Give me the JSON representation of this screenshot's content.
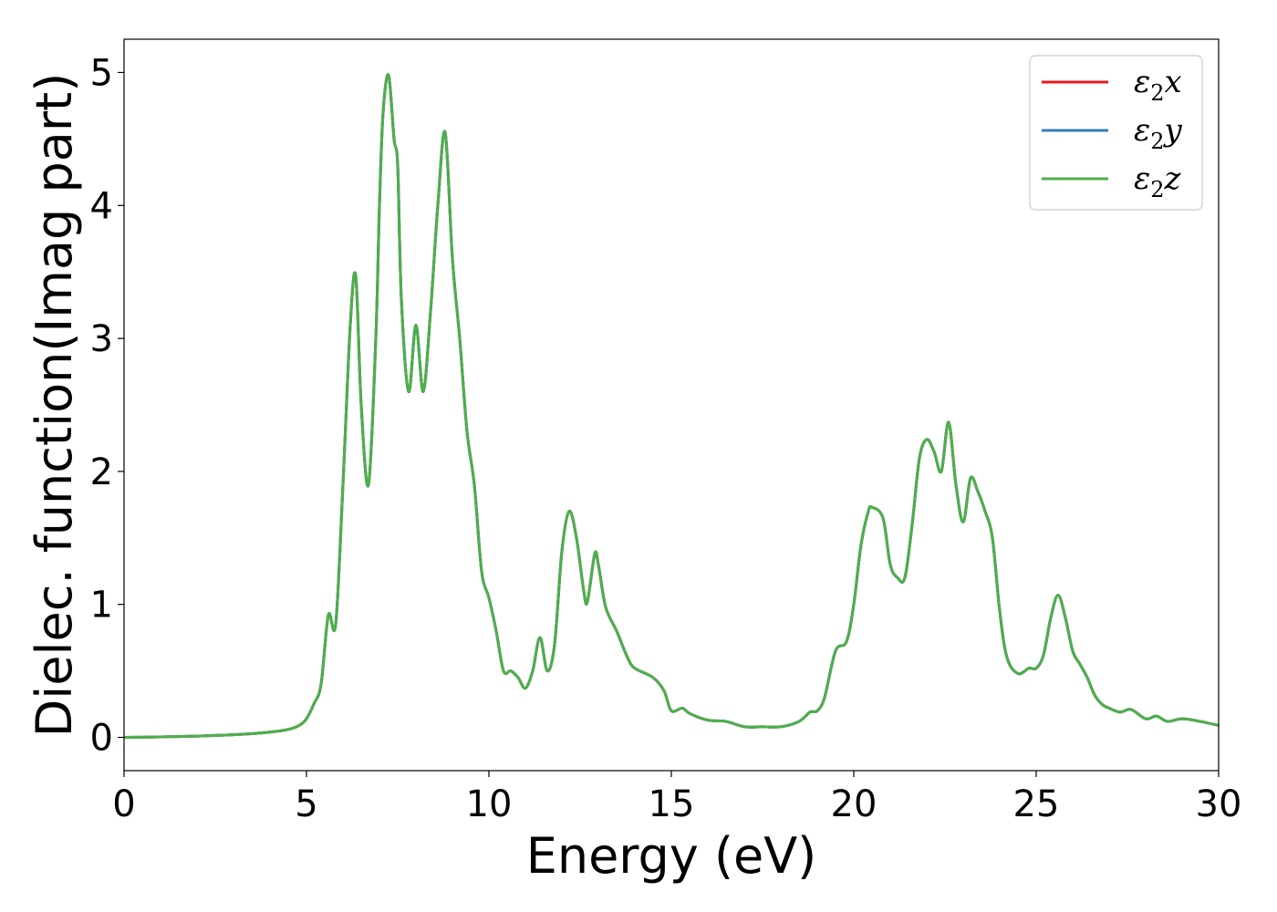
{
  "chart_data": {
    "type": "line",
    "title": "",
    "xlabel": "Energy (eV)",
    "ylabel": "Dielec. function(Imag part)",
    "xlim": [
      0,
      30
    ],
    "ylim": [
      -0.25,
      5.25
    ],
    "xticks": [
      0,
      5,
      10,
      15,
      20,
      25,
      30
    ],
    "yticks": [
      0,
      1,
      2,
      3,
      4,
      5
    ],
    "grid": false,
    "legend_position": "top-right",
    "x": [
      0,
      1,
      2,
      3,
      4,
      4.5,
      4.8,
      5.0,
      5.2,
      5.4,
      5.6,
      5.8,
      6.0,
      6.2,
      6.35,
      6.5,
      6.7,
      6.9,
      7.0,
      7.1,
      7.25,
      7.4,
      7.5,
      7.6,
      7.8,
      8.0,
      8.2,
      8.4,
      8.6,
      8.8,
      9.0,
      9.2,
      9.4,
      9.6,
      9.8,
      10.0,
      10.2,
      10.4,
      10.6,
      10.8,
      11.0,
      11.2,
      11.4,
      11.6,
      11.8,
      12.0,
      12.2,
      12.4,
      12.6,
      12.7,
      12.9,
      13.0,
      13.2,
      13.5,
      13.8,
      14.0,
      14.5,
      14.8,
      15.0,
      15.3,
      15.5,
      16.0,
      16.5,
      17.0,
      17.5,
      18.0,
      18.5,
      18.8,
      19.0,
      19.2,
      19.5,
      19.8,
      20.0,
      20.2,
      20.4,
      20.5,
      20.8,
      21.0,
      21.2,
      21.4,
      21.6,
      21.8,
      22.0,
      22.2,
      22.4,
      22.6,
      22.8,
      23.0,
      23.2,
      23.4,
      23.6,
      23.8,
      24.0,
      24.2,
      24.5,
      24.8,
      25.0,
      25.2,
      25.4,
      25.6,
      25.8,
      26.0,
      26.2,
      26.4,
      26.6,
      26.8,
      27.0,
      27.3,
      27.6,
      28.0,
      28.3,
      28.6,
      29.0,
      29.5,
      30.0
    ],
    "series": [
      {
        "name": "ε2x",
        "color": "#e41a1c",
        "values": [
          0.0,
          0.004,
          0.01,
          0.02,
          0.04,
          0.06,
          0.09,
          0.14,
          0.25,
          0.4,
          0.92,
          0.85,
          1.9,
          3.1,
          3.47,
          2.5,
          1.9,
          3.0,
          4.0,
          4.7,
          4.98,
          4.5,
          4.3,
          3.3,
          2.6,
          3.1,
          2.6,
          3.2,
          4.0,
          4.55,
          3.6,
          3.0,
          2.3,
          1.9,
          1.25,
          1.05,
          0.8,
          0.5,
          0.5,
          0.45,
          0.37,
          0.5,
          0.75,
          0.5,
          0.7,
          1.4,
          1.7,
          1.5,
          1.1,
          1.02,
          1.38,
          1.3,
          0.98,
          0.8,
          0.6,
          0.52,
          0.45,
          0.35,
          0.2,
          0.22,
          0.18,
          0.13,
          0.12,
          0.08,
          0.08,
          0.08,
          0.12,
          0.19,
          0.2,
          0.3,
          0.65,
          0.72,
          1.0,
          1.45,
          1.7,
          1.73,
          1.65,
          1.3,
          1.2,
          1.2,
          1.6,
          2.1,
          2.24,
          2.15,
          2.0,
          2.37,
          1.9,
          1.62,
          1.95,
          1.85,
          1.7,
          1.5,
          0.95,
          0.6,
          0.48,
          0.52,
          0.52,
          0.62,
          0.9,
          1.07,
          0.9,
          0.65,
          0.55,
          0.45,
          0.32,
          0.25,
          0.22,
          0.19,
          0.21,
          0.14,
          0.16,
          0.12,
          0.14,
          0.12,
          0.09
        ]
      },
      {
        "name": "ε2y",
        "color": "#377eb8",
        "values": [
          0.0,
          0.004,
          0.01,
          0.02,
          0.04,
          0.06,
          0.09,
          0.14,
          0.25,
          0.4,
          0.92,
          0.85,
          1.9,
          3.1,
          3.47,
          2.5,
          1.9,
          3.0,
          4.0,
          4.7,
          4.98,
          4.5,
          4.3,
          3.3,
          2.6,
          3.1,
          2.6,
          3.2,
          4.0,
          4.55,
          3.6,
          3.0,
          2.3,
          1.9,
          1.25,
          1.05,
          0.8,
          0.5,
          0.5,
          0.45,
          0.37,
          0.5,
          0.75,
          0.5,
          0.7,
          1.4,
          1.7,
          1.5,
          1.1,
          1.02,
          1.38,
          1.3,
          0.98,
          0.8,
          0.6,
          0.52,
          0.45,
          0.35,
          0.2,
          0.22,
          0.18,
          0.13,
          0.12,
          0.08,
          0.08,
          0.08,
          0.12,
          0.19,
          0.2,
          0.3,
          0.65,
          0.72,
          1.0,
          1.45,
          1.7,
          1.73,
          1.65,
          1.3,
          1.2,
          1.2,
          1.6,
          2.1,
          2.24,
          2.15,
          2.0,
          2.37,
          1.9,
          1.62,
          1.95,
          1.85,
          1.7,
          1.5,
          0.95,
          0.6,
          0.48,
          0.52,
          0.52,
          0.62,
          0.9,
          1.07,
          0.9,
          0.65,
          0.55,
          0.45,
          0.32,
          0.25,
          0.22,
          0.19,
          0.21,
          0.14,
          0.16,
          0.12,
          0.14,
          0.12,
          0.09
        ]
      },
      {
        "name": "ε2z",
        "color": "#4daf4a",
        "values": [
          0.0,
          0.004,
          0.01,
          0.02,
          0.04,
          0.06,
          0.09,
          0.14,
          0.25,
          0.4,
          0.92,
          0.85,
          1.9,
          3.1,
          3.47,
          2.5,
          1.9,
          3.0,
          4.0,
          4.7,
          4.98,
          4.5,
          4.3,
          3.3,
          2.6,
          3.1,
          2.6,
          3.2,
          4.0,
          4.55,
          3.6,
          3.0,
          2.3,
          1.9,
          1.25,
          1.05,
          0.8,
          0.5,
          0.5,
          0.45,
          0.37,
          0.5,
          0.75,
          0.5,
          0.7,
          1.4,
          1.7,
          1.5,
          1.1,
          1.02,
          1.38,
          1.3,
          0.98,
          0.8,
          0.6,
          0.52,
          0.45,
          0.35,
          0.2,
          0.22,
          0.18,
          0.13,
          0.12,
          0.08,
          0.08,
          0.08,
          0.12,
          0.19,
          0.2,
          0.3,
          0.65,
          0.72,
          1.0,
          1.45,
          1.7,
          1.73,
          1.65,
          1.3,
          1.2,
          1.2,
          1.6,
          2.1,
          2.24,
          2.15,
          2.0,
          2.37,
          1.9,
          1.62,
          1.95,
          1.85,
          1.7,
          1.5,
          0.95,
          0.6,
          0.48,
          0.52,
          0.52,
          0.62,
          0.9,
          1.07,
          0.9,
          0.65,
          0.55,
          0.45,
          0.32,
          0.25,
          0.22,
          0.19,
          0.21,
          0.14,
          0.16,
          0.12,
          0.14,
          0.12,
          0.09
        ]
      }
    ],
    "legend": [
      {
        "base": "ε",
        "sub": "2",
        "var": "x"
      },
      {
        "base": "ε",
        "sub": "2",
        "var": "y"
      },
      {
        "base": "ε",
        "sub": "2",
        "var": "z"
      }
    ]
  }
}
